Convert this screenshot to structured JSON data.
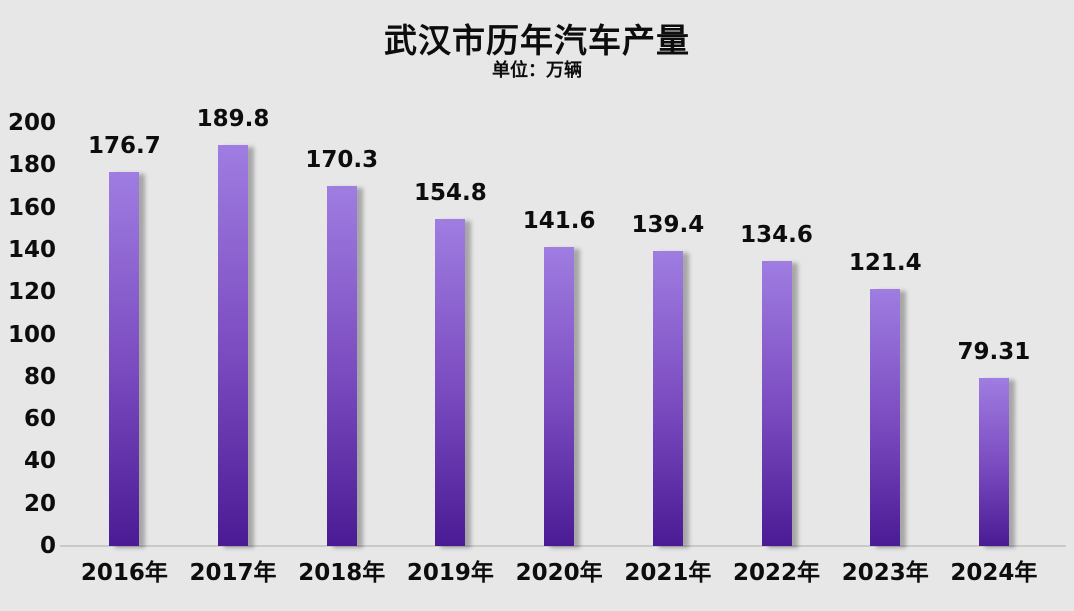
{
  "title": "武汉市历年汽车产量",
  "subtitle": "单位：万辆",
  "chart_data": {
    "type": "bar",
    "title": "武汉市历年汽车产量",
    "subtitle": "单位：万辆",
    "categories": [
      "2016年",
      "2017年",
      "2018年",
      "2019年",
      "2020年",
      "2021年",
      "2022年",
      "2023年",
      "2024年"
    ],
    "values": [
      176.7,
      189.8,
      170.3,
      154.8,
      141.6,
      139.4,
      134.6,
      121.4,
      79.31
    ],
    "xlabel": "",
    "ylabel": "",
    "ylim": [
      0,
      200
    ],
    "yticks": [
      0,
      20,
      40,
      60,
      80,
      100,
      120,
      140,
      160,
      180,
      200
    ],
    "grid": false,
    "legend": "none",
    "data_labels": true,
    "colors": {
      "background": "#e7e7e7",
      "text": "#0d0d0d",
      "bar_gradient_top": "#9f7de1",
      "bar_gradient_mid": "#7b4bc0",
      "bar_gradient_bottom": "#4a1b94",
      "axis_line": "#c9c9c9"
    }
  }
}
